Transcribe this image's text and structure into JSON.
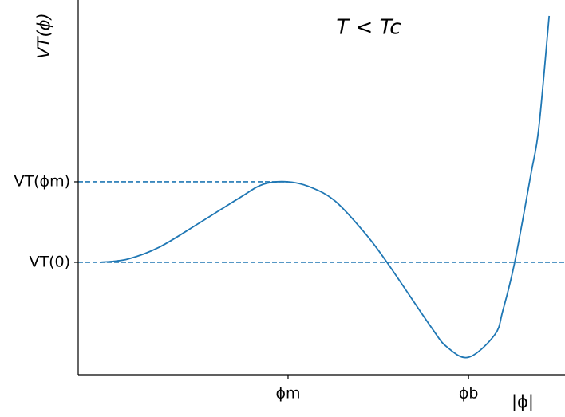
{
  "chart_data": {
    "type": "line",
    "title": "T < Tc",
    "ylabel": "VT(ϕ)",
    "xlabel": "|ϕ|",
    "x": [
      0,
      0.148,
      0.318,
      0.53,
      0.742,
      0.869,
      1.0,
      1.123,
      1.25,
      1.398,
      1.525,
      1.758,
      1.843,
      1.958,
      2.097,
      2.14,
      2.203,
      2.288,
      2.331,
      2.386
    ],
    "series": [
      {
        "color": "#1f77b4",
        "values": [
          0,
          0.04,
          0.19,
          0.49,
          0.8,
          0.97,
          1.0,
          0.93,
          0.76,
          0.39,
          0,
          -0.8,
          -1.05,
          -1.18,
          -0.9,
          -0.6,
          0,
          1.08,
          1.67,
          3.06
        ]
      }
    ],
    "xlim": [
      -0.114,
      2.47
    ],
    "ylim": [
      -1.396,
      3.257
    ],
    "xticks": [
      {
        "value": 1.0,
        "label": "ϕm"
      },
      {
        "value": 1.958,
        "label": "ϕb"
      }
    ],
    "yticks": [
      {
        "value": 0,
        "label": "VT(0)"
      },
      {
        "value": 1.0,
        "label": "VT(ϕm)"
      }
    ],
    "reference_lines": true
  }
}
